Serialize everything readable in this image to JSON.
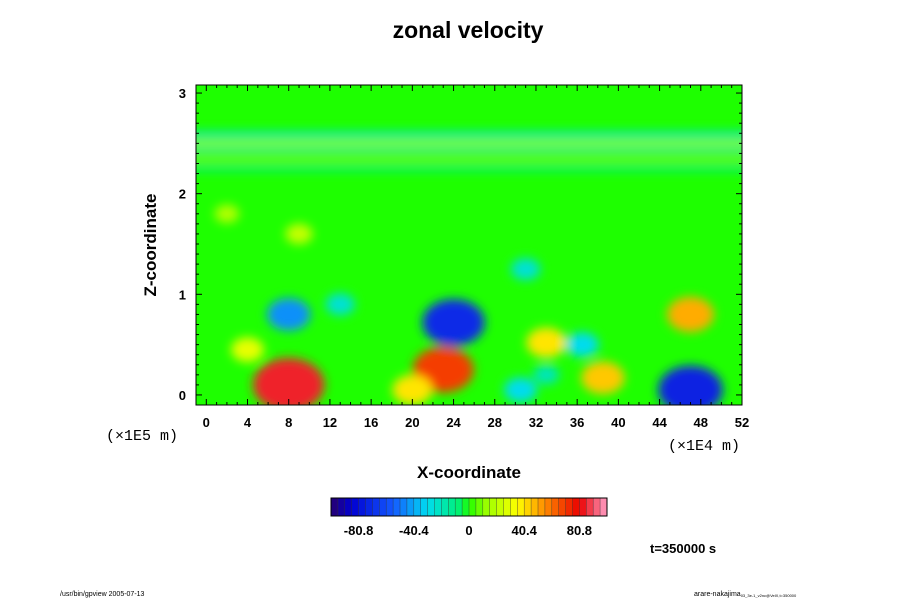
{
  "chart_data": {
    "type": "heatmap",
    "title": "zonal velocity",
    "xlabel": "X-coordinate",
    "ylabel": "Z-coordinate",
    "x_ticks": [
      "0",
      "4",
      "8",
      "12",
      "16",
      "20",
      "24",
      "28",
      "32",
      "36",
      "40",
      "44",
      "48",
      "52"
    ],
    "y_ticks": [
      "0",
      "1",
      "2",
      "3"
    ],
    "x_unit": "(×1E4 m)",
    "y_unit": "(×1E5 m)",
    "xlim": [
      -1,
      52
    ],
    "ylim": [
      -0.1,
      3.08
    ],
    "colorbar": {
      "ticks": [
        "-80.8",
        "-40.4",
        "0",
        "40.4",
        "80.8"
      ],
      "tick_values": [
        -80.8,
        -40.4,
        0,
        40.4,
        80.8
      ],
      "range": [
        -101,
        101
      ]
    },
    "features": [
      {
        "x": 8,
        "z": 0.1,
        "value": 85
      },
      {
        "x": 24,
        "z": 0.72,
        "value": -72
      },
      {
        "x": 23,
        "z": 0.25,
        "value": 70
      },
      {
        "x": 47,
        "z": 0.05,
        "value": -75
      },
      {
        "x": 47,
        "z": 0.8,
        "value": 50
      },
      {
        "x": 8,
        "z": 0.8,
        "value": -45
      },
      {
        "x": 33,
        "z": 0.52,
        "value": 40
      },
      {
        "x": 38.5,
        "z": 0.17,
        "value": 45
      },
      {
        "x": 20,
        "z": 0.05,
        "value": 40
      },
      {
        "x": 36.5,
        "z": 0.5,
        "value": -30
      },
      {
        "x": 4,
        "z": 0.45,
        "value": 30
      },
      {
        "x": 9,
        "z": 1.6,
        "value": 22
      },
      {
        "x": 2,
        "z": 1.8,
        "value": 18
      },
      {
        "x": 31,
        "z": 1.25,
        "value": -25
      },
      {
        "x": 33,
        "z": 0.2,
        "value": -20
      },
      {
        "x": 30.5,
        "z": 0.05,
        "value": -30
      },
      {
        "x": 13,
        "z": 0.9,
        "value": -25
      }
    ],
    "upper_bands": [
      {
        "z": 2.59,
        "value": -30
      },
      {
        "z": 2.5,
        "value": 15
      },
      {
        "z": 2.44,
        "value": -18
      },
      {
        "z": 2.35,
        "value": 10
      },
      {
        "z": 2.25,
        "value": -12
      }
    ]
  },
  "time_label": "t=350000 s",
  "footer_left": "/usr/bin/gpview 2005-07-13",
  "footer_right": "arare-nakajima",
  "footer_right_sub": "03_3e-1_v2nc@VelX,t=350000"
}
